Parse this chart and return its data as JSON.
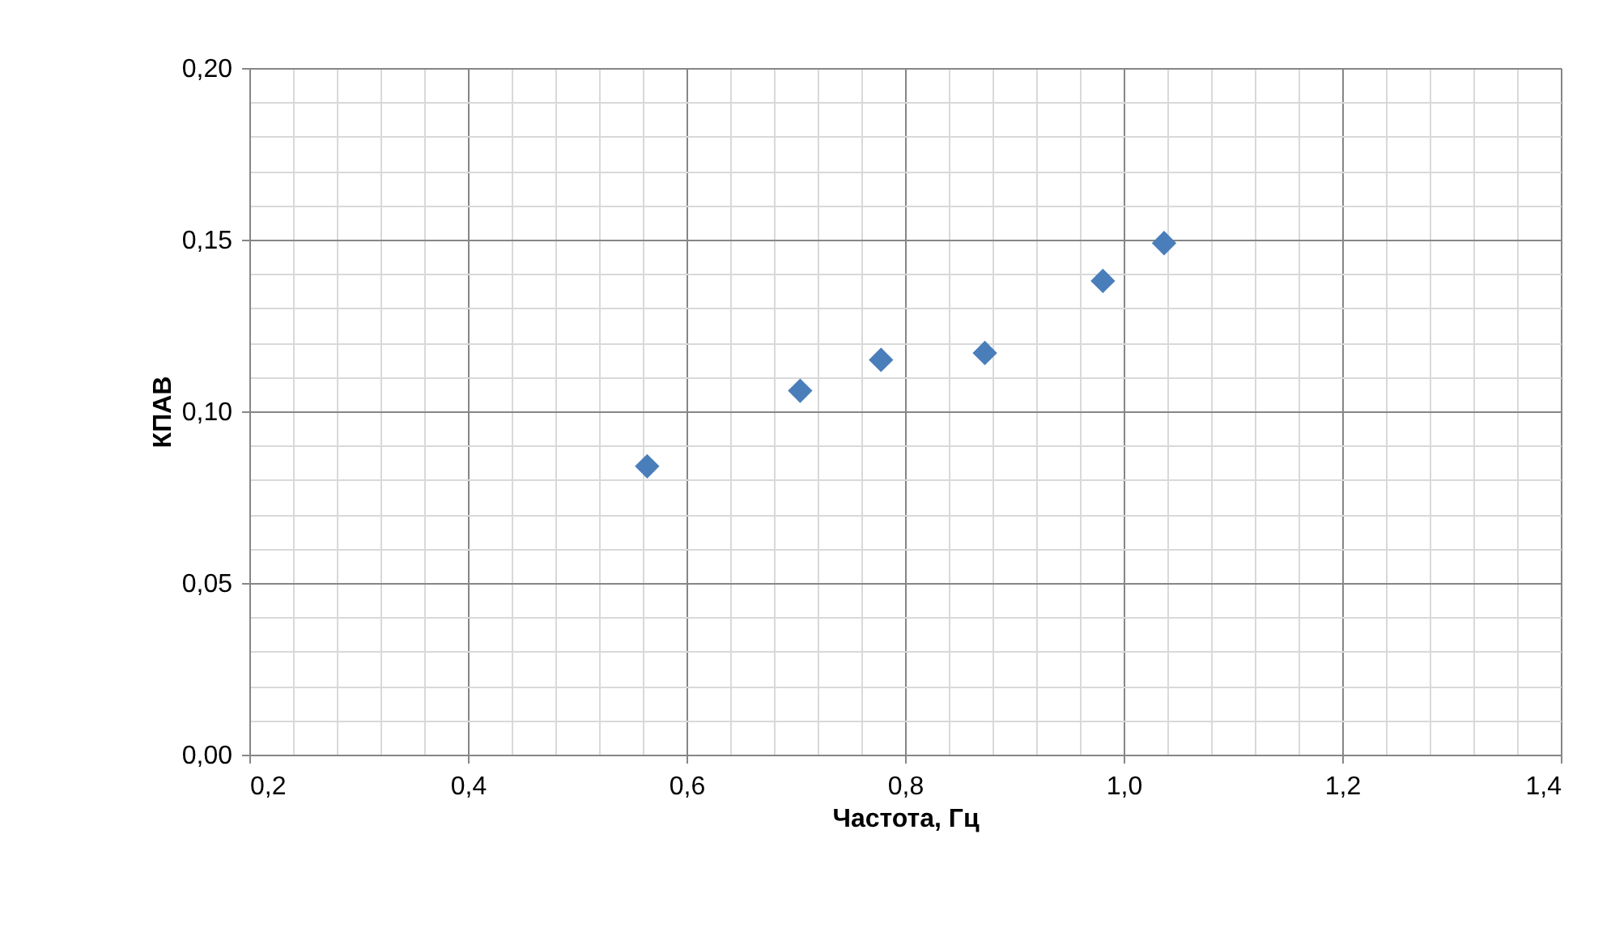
{
  "chart_data": {
    "type": "scatter",
    "xlabel": "Частота, Гц",
    "ylabel": "КПАВ",
    "x": [
      0.564,
      0.704,
      0.778,
      0.873,
      0.981,
      1.037
    ],
    "series": [
      {
        "color": "#4a7ebb",
        "values": [
          0.084,
          0.106,
          0.115,
          0.117,
          0.138,
          0.149
        ]
      }
    ],
    "xlim": [
      0.2,
      1.4
    ],
    "ylim": [
      0,
      0.2
    ],
    "xticks": [
      {
        "value": 0.2,
        "label": "0,2"
      },
      {
        "value": 0.4,
        "label": "0,4"
      },
      {
        "value": 0.6,
        "label": "0,6"
      },
      {
        "value": 0.8,
        "label": "0,8"
      },
      {
        "value": 1.0,
        "label": "1,0"
      },
      {
        "value": 1.2,
        "label": "1,2"
      },
      {
        "value": 1.4,
        "label": "1,4"
      }
    ],
    "yticks": [
      {
        "value": 0,
        "label": "0,00"
      },
      {
        "value": 0.05,
        "label": "0,05"
      },
      {
        "value": 0.1,
        "label": "0,10"
      },
      {
        "value": 0.15,
        "label": "0,15"
      },
      {
        "value": 0.2,
        "label": "0,20"
      }
    ],
    "grid": true,
    "marker": "diamond"
  }
}
